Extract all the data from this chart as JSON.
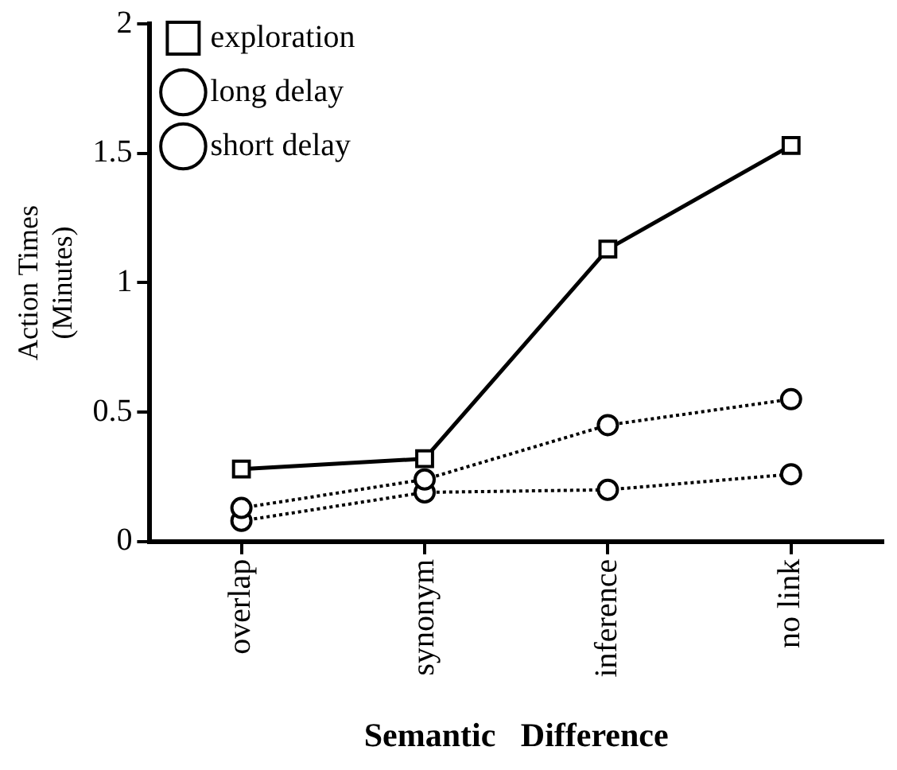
{
  "chart_data": {
    "type": "line",
    "xlabel": "Semantic   Difference",
    "ylabel": "Action Times\n(Minutes)",
    "categories": [
      "overlap",
      "synonym",
      "inference",
      "no link"
    ],
    "series": [
      {
        "name": "exploration",
        "color": "#000000",
        "values": [
          0.28,
          0.32,
          1.13,
          1.53
        ],
        "marker": "square",
        "line_style": "solid"
      },
      {
        "name": "long delay",
        "color": "#000000",
        "values": [
          0.13,
          0.24,
          0.45,
          0.55
        ],
        "marker": "circle",
        "line_style": "dotted"
      },
      {
        "name": "short delay",
        "color": "#000000",
        "values": [
          0.08,
          0.19,
          0.2,
          0.26
        ],
        "marker": "circle",
        "line_style": "dotted"
      }
    ],
    "ylim": [
      0,
      2
    ],
    "yticks": [
      0,
      0.5,
      1,
      1.5,
      2
    ],
    "grid": false,
    "legend": "top left"
  }
}
